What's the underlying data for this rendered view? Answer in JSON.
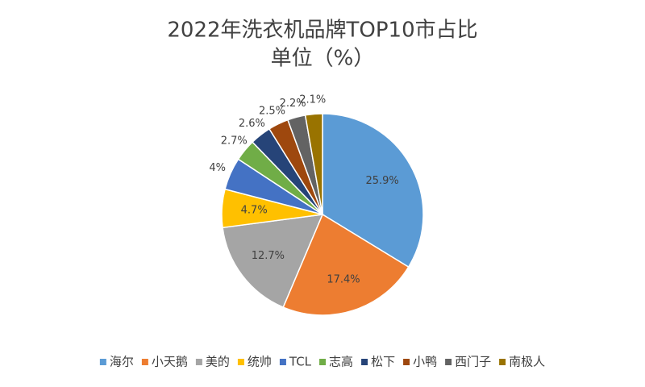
{
  "chart_data": {
    "type": "pie",
    "title": "2022年洗衣机品牌TOP10市占比",
    "subtitle": "单位（%）",
    "categories": [
      "海尔",
      "小天鹅",
      "美的",
      "统帅",
      "TCL",
      "志高",
      "松下",
      "小鸭",
      "西门子",
      "南极人"
    ],
    "values": [
      25.9,
      17.4,
      12.7,
      4.7,
      4,
      2.7,
      2.6,
      2.5,
      2.2,
      2.1
    ],
    "value_labels": [
      "25.9%",
      "17.4%",
      "12.7%",
      "4.7%",
      "4%",
      "2.7%",
      "2.6%",
      "2.5%",
      "2.2%",
      "2.1%"
    ],
    "colors": [
      "#5b9bd5",
      "#ed7d31",
      "#a5a5a5",
      "#ffc000",
      "#4472c4",
      "#70ad47",
      "#264478",
      "#9e480e",
      "#636363",
      "#997300"
    ],
    "legend": "bottom"
  }
}
